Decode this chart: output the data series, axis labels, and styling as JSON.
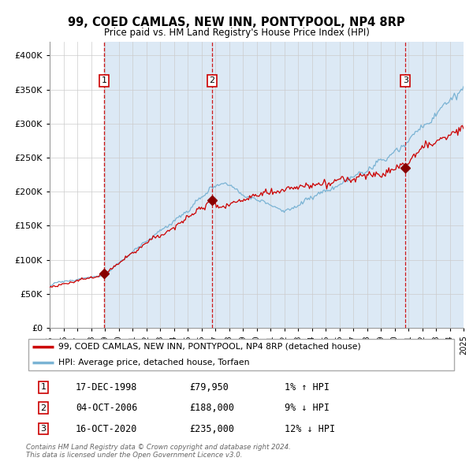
{
  "title": "99, COED CAMLAS, NEW INN, PONTYPOOL, NP4 8RP",
  "subtitle": "Price paid vs. HM Land Registry's House Price Index (HPI)",
  "legend_line1": "99, COED CAMLAS, NEW INN, PONTYPOOL, NP4 8RP (detached house)",
  "legend_line2": "HPI: Average price, detached house, Torfaen",
  "sale_prices": [
    79950,
    188000,
    235000
  ],
  "sale_labels": [
    "1",
    "2",
    "3"
  ],
  "sale_hpi_diff": [
    "1% ↑ HPI",
    "9% ↓ HPI",
    "12% ↓ HPI"
  ],
  "sale_date_labels": [
    "17-DEC-1998",
    "04-OCT-2006",
    "16-OCT-2020"
  ],
  "sale_price_labels": [
    "£79,950",
    "£188,000",
    "£235,000"
  ],
  "copyright": "Contains HM Land Registry data © Crown copyright and database right 2024.\nThis data is licensed under the Open Government Licence v3.0.",
  "ylim": [
    0,
    420000
  ],
  "yticks": [
    0,
    50000,
    100000,
    150000,
    200000,
    250000,
    300000,
    350000,
    400000
  ],
  "ytick_labels": [
    "£0",
    "£50K",
    "£100K",
    "£150K",
    "£200K",
    "£250K",
    "£300K",
    "£350K",
    "£400K"
  ],
  "plot_bg": "#ffffff",
  "shade_color": "#dce9f5",
  "hpi_color": "#7ab3d4",
  "price_color": "#cc0000",
  "marker_color": "#880000",
  "vline_color": "#cc0000",
  "grid_color": "#cccccc",
  "xstart_year": 1995,
  "xend_year": 2025,
  "sale_year_floats": [
    1998.958,
    2006.75,
    2020.792
  ]
}
